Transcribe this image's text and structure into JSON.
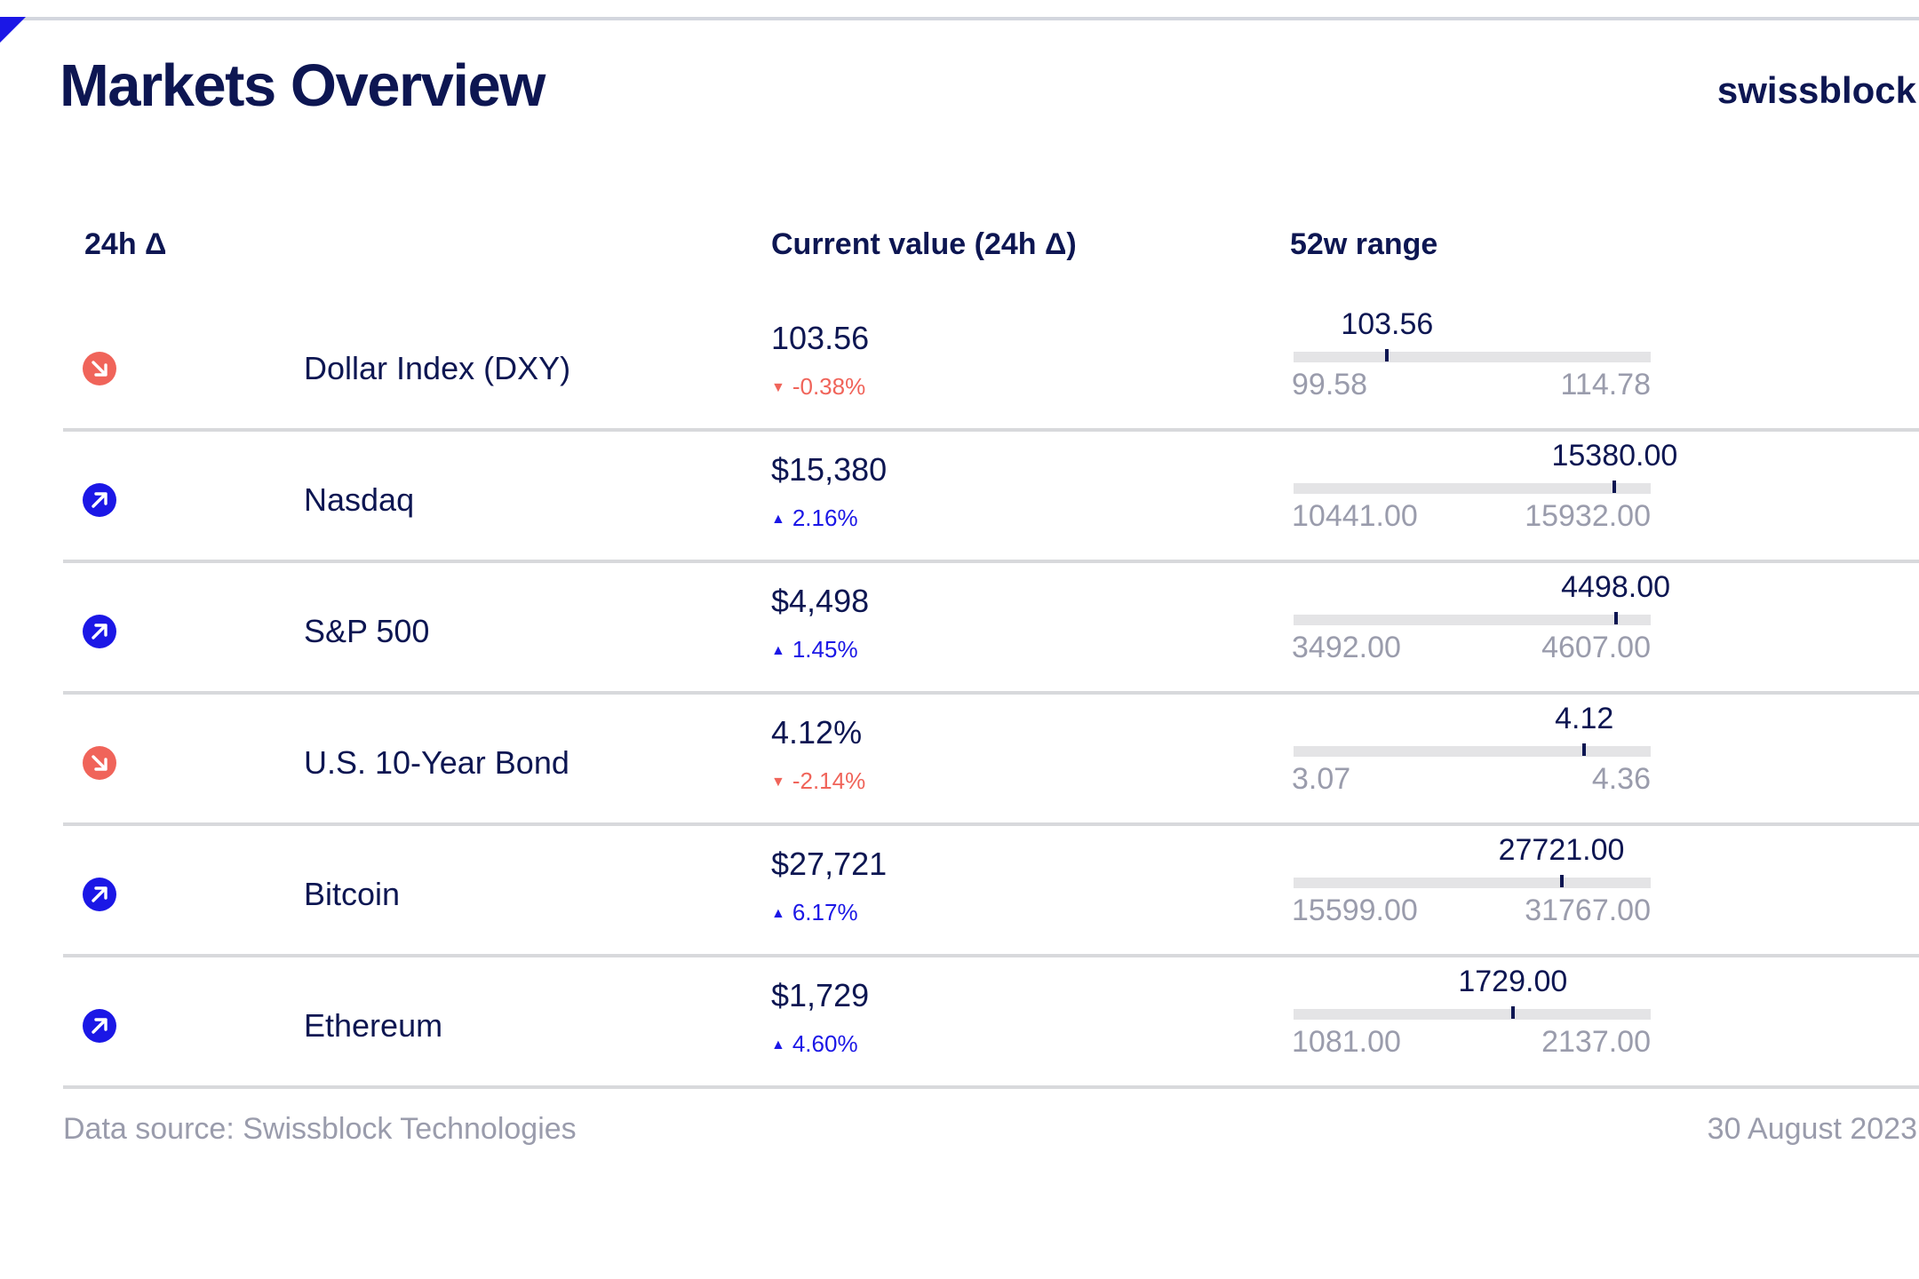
{
  "title": "Markets Overview",
  "brand": "swissblock",
  "colors": {
    "accent_blue": "#1b17e6",
    "negative_red": "#f0645a",
    "navy_text": "#0d1652",
    "muted_gray": "#9a9cac"
  },
  "columns": {
    "change": "24h Δ",
    "current": "Current value (24h Δ)",
    "range": "52w range"
  },
  "rows": [
    {
      "icon": "arrow-down-right-icon",
      "direction": "down",
      "name": "Dollar Index (DXY)",
      "value": "103.56",
      "arrow": "▼",
      "change": "-0.38%",
      "range_current": "103.56",
      "range_min": "99.58",
      "range_max": "114.78",
      "position": 0.262
    },
    {
      "icon": "arrow-up-right-icon",
      "direction": "up",
      "name": "Nasdaq",
      "value": "$15,380",
      "arrow": "▲",
      "change": "2.16%",
      "range_current": "15380.00",
      "range_min": "10441.00",
      "range_max": "15932.00",
      "position": 0.899
    },
    {
      "icon": "arrow-up-right-icon",
      "direction": "up",
      "name": "S&P 500",
      "value": "$4,498",
      "arrow": "▲",
      "change": "1.45%",
      "range_current": "4498.00",
      "range_min": "3492.00",
      "range_max": "4607.00",
      "position": 0.902
    },
    {
      "icon": "arrow-down-right-icon",
      "direction": "down",
      "name": "U.S. 10-Year Bond",
      "value": "4.12%",
      "arrow": "▼",
      "change": "-2.14%",
      "range_current": "4.12",
      "range_min": "3.07",
      "range_max": "4.36",
      "position": 0.814
    },
    {
      "icon": "arrow-up-right-icon",
      "direction": "up",
      "name": "Bitcoin",
      "value": "$27,721",
      "arrow": "▲",
      "change": "6.17%",
      "range_current": "27721.00",
      "range_min": "15599.00",
      "range_max": "31767.00",
      "position": 0.75
    },
    {
      "icon": "arrow-up-right-icon",
      "direction": "up",
      "name": "Ethereum",
      "value": "$1,729",
      "arrow": "▲",
      "change": "4.60%",
      "range_current": "1729.00",
      "range_min": "1081.00",
      "range_max": "2137.00",
      "position": 0.614
    }
  ],
  "footer": {
    "source": "Data source: Swissblock Technologies",
    "date": "30 August 2023"
  }
}
